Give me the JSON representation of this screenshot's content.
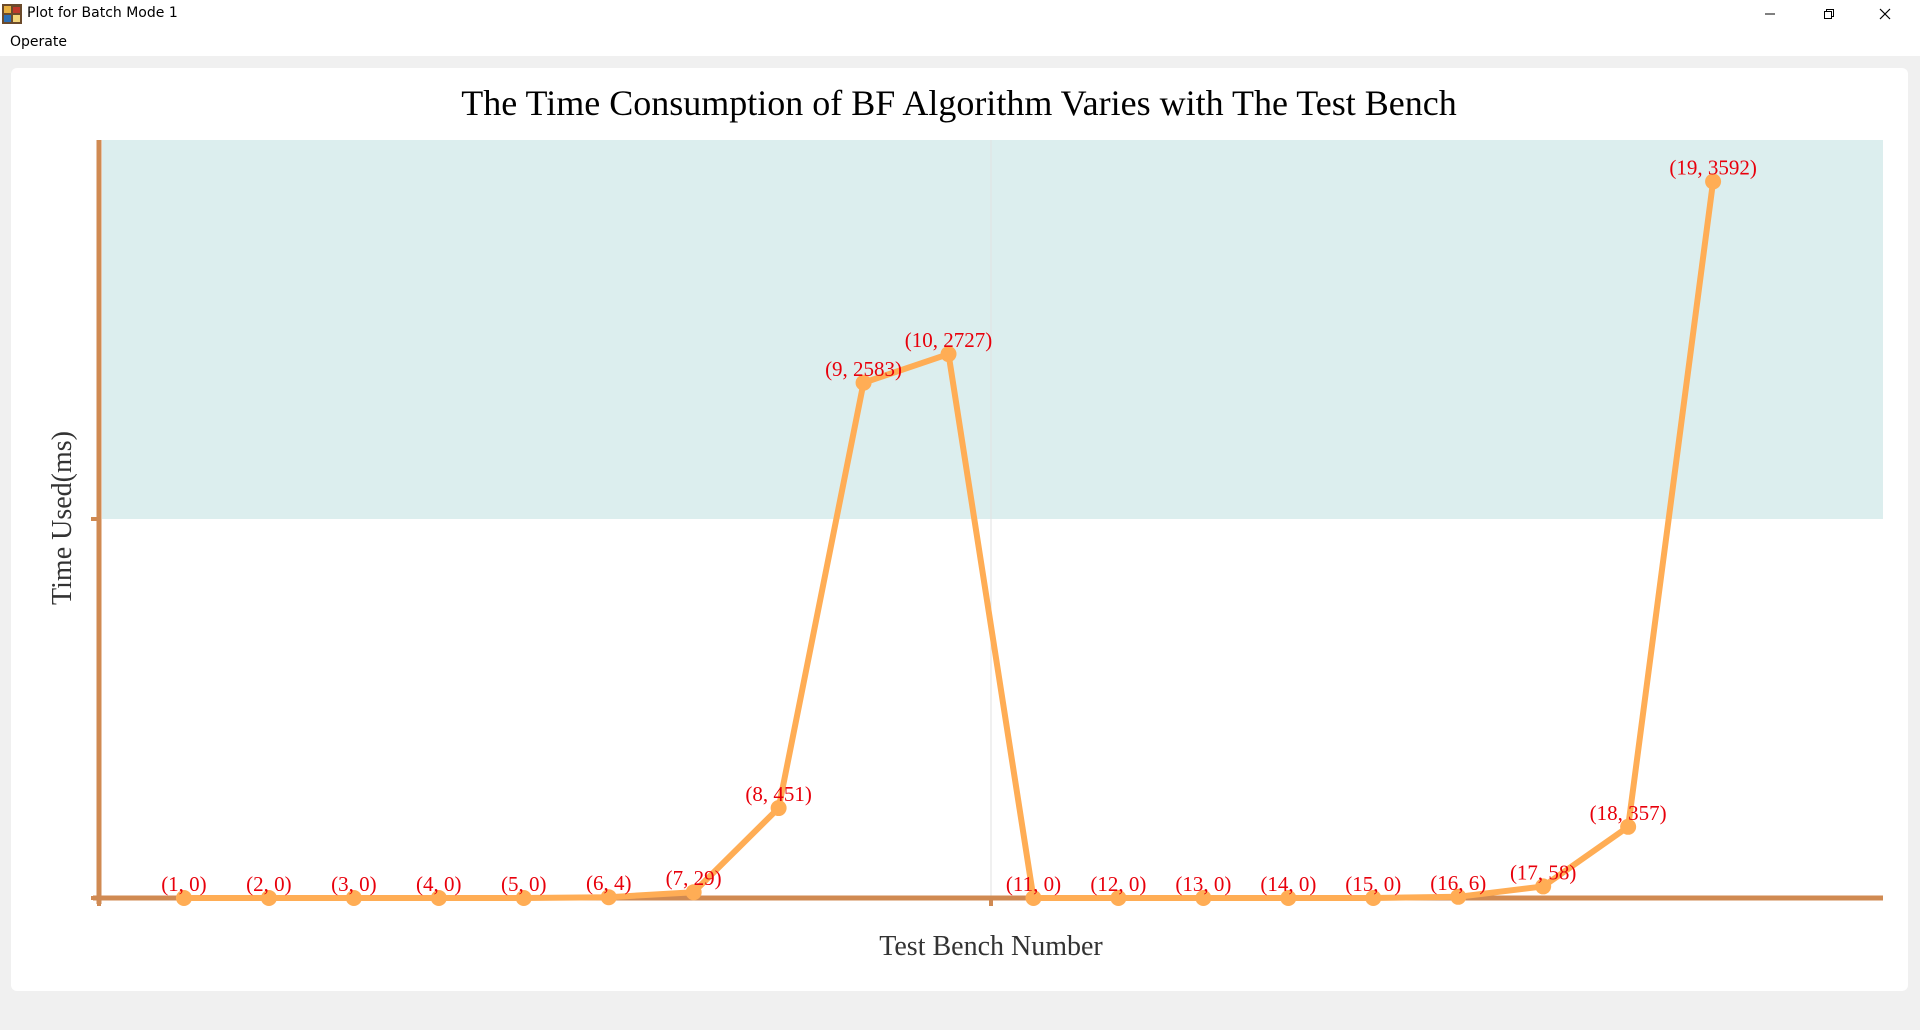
{
  "window": {
    "title": "Plot for Batch Mode 1",
    "icon": "app-icon",
    "controls": {
      "minimize_icon": "minimize-icon",
      "maximize_icon": "restore-icon",
      "close_icon": "close-icon"
    }
  },
  "menu": {
    "items": [
      "Operate"
    ]
  },
  "colors": {
    "line": "#ffad55",
    "axis": "#d08a52",
    "label": "#e8000b",
    "band": "#dceeee",
    "title": "#000000"
  },
  "chart_data": {
    "type": "line",
    "title": "The Time Consumption of BF Algorithm Varies with The Test Bench",
    "xlabel": "Test Bench Number",
    "ylabel": "Time Used(ms)",
    "x": [
      1,
      2,
      3,
      4,
      5,
      6,
      7,
      8,
      9,
      10,
      11,
      12,
      13,
      14,
      15,
      16,
      17,
      18,
      19
    ],
    "y": [
      0,
      0,
      0,
      0,
      0,
      4,
      29,
      451,
      2583,
      2727,
      0,
      0,
      0,
      0,
      0,
      6,
      58,
      357,
      3592
    ],
    "point_labels": [
      "(1, 0)",
      "(2, 0)",
      "(3, 0)",
      "(4, 0)",
      "(5, 0)",
      "(6, 4)",
      "(7, 29)",
      "(8, 451)",
      "(9, 2583)",
      "(10, 2727)",
      "(11, 0)",
      "(12, 0)",
      "(13, 0)",
      "(14, 0)",
      "(15, 0)",
      "(16, 6)",
      "(17, 58)",
      "(18, 357)",
      "(19, 3592)"
    ],
    "xlim": [
      0,
      21
    ],
    "ylim": [
      0,
      3800
    ],
    "grid": false,
    "shaded_band": [
      1900,
      3800
    ]
  }
}
